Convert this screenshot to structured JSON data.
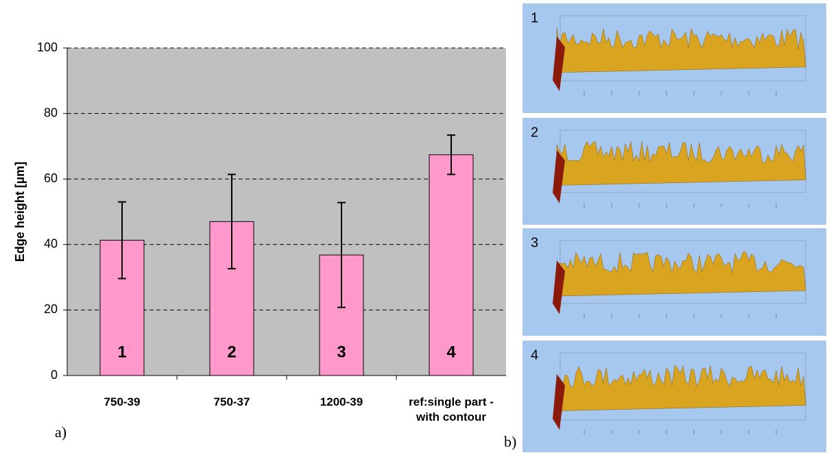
{
  "chart_data": {
    "type": "bar",
    "y_label": "Edge height [µm]",
    "categories": [
      "750-39",
      "750-37",
      "1200-39",
      "ref:single part -with contour"
    ],
    "values": [
      41.3,
      47,
      36.8,
      67.4
    ],
    "errors": [
      11.7,
      14.4,
      16,
      6
    ],
    "bar_labels": [
      "1",
      "2",
      "3",
      "4"
    ],
    "color": "#ff99cc",
    "background": "#c0c0c0",
    "ylim": [
      0,
      100
    ],
    "yticks": [
      0,
      20,
      40,
      60,
      80,
      100
    ],
    "grid": true,
    "annotations": [
      "a)",
      "b)"
    ]
  },
  "panels": [
    {
      "label": "1"
    },
    {
      "label": "2"
    },
    {
      "label": "3"
    },
    {
      "label": "4"
    }
  ]
}
